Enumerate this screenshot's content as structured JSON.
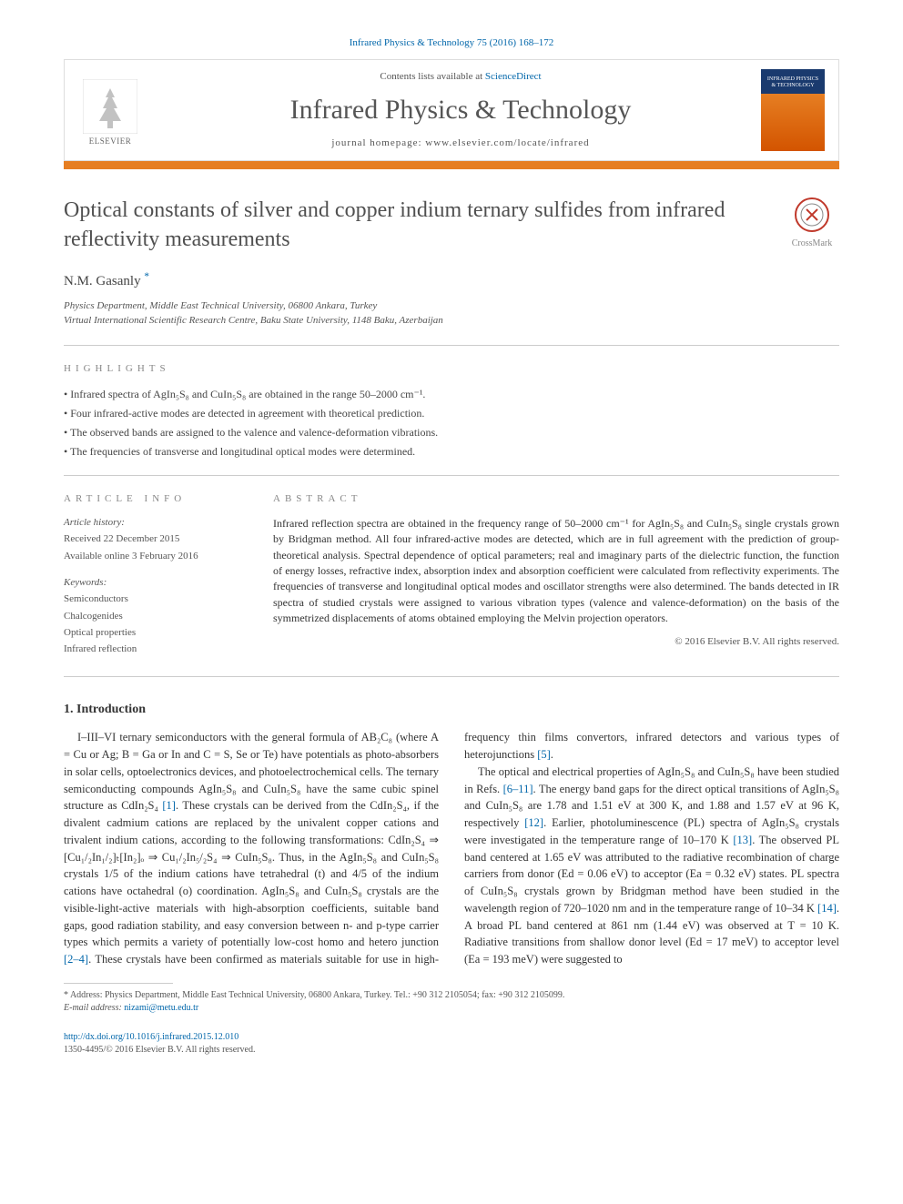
{
  "header": {
    "citation": "Infrared Physics & Technology 75 (2016) 168–172",
    "contents_prefix": "Contents lists available at ",
    "contents_link": "ScienceDirect",
    "journal_name": "Infrared Physics & Technology",
    "homepage_prefix": "journal homepage: ",
    "homepage_url": "www.elsevier.com/locate/infrared",
    "publisher": "ELSEVIER",
    "cover_text": "INFRARED PHYSICS & TECHNOLOGY",
    "colors": {
      "orange_bar": "#e67e22",
      "link": "#0066aa",
      "cover_top": "#1a3a6e",
      "cover_bottom": "#d35400"
    }
  },
  "article": {
    "title": "Optical constants of silver and copper indium ternary sulfides from infrared reflectivity measurements",
    "crossmark_label": "CrossMark",
    "author_name": "N.M. Gasanly",
    "author_marker": "*",
    "affiliations": [
      "Physics Department, Middle East Technical University, 06800 Ankara, Turkey",
      "Virtual International Scientific Research Centre, Baku State University, 1148 Baku, Azerbaijan"
    ]
  },
  "highlights": {
    "label": "HIGHLIGHTS",
    "items": [
      "Infrared spectra of AgIn₅S₈ and CuIn₅S₈ are obtained in the range 50–2000 cm⁻¹.",
      "Four infrared-active modes are detected in agreement with theoretical prediction.",
      "The observed bands are assigned to the valence and valence-deformation vibrations.",
      "The frequencies of transverse and longitudinal optical modes were determined."
    ]
  },
  "info": {
    "label": "ARTICLE INFO",
    "history_head": "Article history:",
    "received": "Received 22 December 2015",
    "online": "Available online 3 February 2016",
    "keywords_head": "Keywords:",
    "keywords": [
      "Semiconductors",
      "Chalcogenides",
      "Optical properties",
      "Infrared reflection"
    ]
  },
  "abstract": {
    "label": "ABSTRACT",
    "text": "Infrared reflection spectra are obtained in the frequency range of 50–2000 cm⁻¹ for AgIn₅S₈ and CuIn₅S₈ single crystals grown by Bridgman method. All four infrared-active modes are detected, which are in full agreement with the prediction of group-theoretical analysis. Spectral dependence of optical parameters; real and imaginary parts of the dielectric function, the function of energy losses, refractive index, absorption index and absorption coefficient were calculated from reflectivity experiments. The frequencies of transverse and longitudinal optical modes and oscillator strengths were also determined. The bands detected in IR spectra of studied crystals were assigned to various vibration types (valence and valence-deformation) on the basis of the symmetrized displacements of atoms obtained employing the Melvin projection operators.",
    "copyright": "© 2016 Elsevier B.V. All rights reserved."
  },
  "intro": {
    "heading": "1. Introduction",
    "paragraphs": [
      {
        "pre": "I–III–VI ternary semiconductors with the general formula of AB₂C₈ (where A = Cu or Ag; B = Ga or In and C = S, Se or Te) have potentials as photo-absorbers in solar cells, optoelectronics devices, and photoelectrochemical cells. The ternary semiconducting compounds AgIn₅S₈ and CuIn₅S₈ have the same cubic spinel structure as CdIn₂S₄ ",
        "link": "[1]",
        "post": ". These crystals can be derived from the CdIn₂S₄, if the divalent cadmium cations are replaced by the univalent copper cations and trivalent indium cations, according to the following transformations: CdIn₂S₄ ⇒ [Cu₁/₂In₁/₂]ₜ[In₂]ₒ ⇒ Cu₁/₂In₅/₂S₄ ⇒ CuIn₅S₈. Thus, in the AgIn₅S₈ and CuIn₅S₈ crystals 1/5 of the indium cations have tetrahedral (t) and 4/5 of the indium cations have octahedral (o) coordination. AgIn₅S₈ and CuIn₅S₈ crystals are the visible-light-active materials with high-absorption coefficients, suitable band gaps, good radiation stability, and easy conversion between n- and p-type carrier types which permits a variety of potentially low-cost homo and hetero junction "
      },
      {
        "link": "[2–4]",
        "post": ". These crystals have been confirmed as materials suitable for use in high-frequency thin films convertors, infrared detectors and various types of heterojunctions "
      },
      {
        "link": "[5]",
        "post": "."
      },
      {
        "newpara": true,
        "pre": "The optical and electrical properties of AgIn₅S₈ and CuIn₅S₈ have been studied in Refs. ",
        "link": "[6–11]",
        "post": ". The energy band gaps for the direct optical transitions of AgIn₅S₈ and CuIn₅S₈ are 1.78 and 1.51 eV at 300 K, and 1.88 and 1.57 eV at 96 K, respectively "
      },
      {
        "link": "[12]",
        "post": ". Earlier, photoluminescence (PL) spectra of AgIn₅S₈ crystals were investigated in the temperature range of 10–170 K "
      },
      {
        "link": "[13]",
        "post": ". The observed PL band centered at 1.65 eV was attributed to the radiative recombination of charge carriers from donor (Ed = 0.06 eV) to acceptor (Ea = 0.32 eV) states. PL spectra of CuIn₅S₈ crystals grown by Bridgman method have been studied in the wavelength region of 720–1020 nm and in the temperature range of 10–34 K "
      },
      {
        "link": "[14]",
        "post": ". A broad PL band centered at 861 nm (1.44 eV) was observed at T = 10 K. Radiative transitions from shallow donor level (Ed = 17 meV) to acceptor level (Ea = 193 meV) were suggested to"
      }
    ]
  },
  "footnotes": {
    "corr": "* Address: Physics Department, Middle East Technical University, 06800 Ankara, Turkey. Tel.: +90 312 2105054; fax: +90 312 2105099.",
    "email_label": "E-mail address: ",
    "email": "nizami@metu.edu.tr"
  },
  "footer": {
    "doi": "http://dx.doi.org/10.1016/j.infrared.2015.12.010",
    "issn_copy": "1350-4495/© 2016 Elsevier B.V. All rights reserved."
  }
}
